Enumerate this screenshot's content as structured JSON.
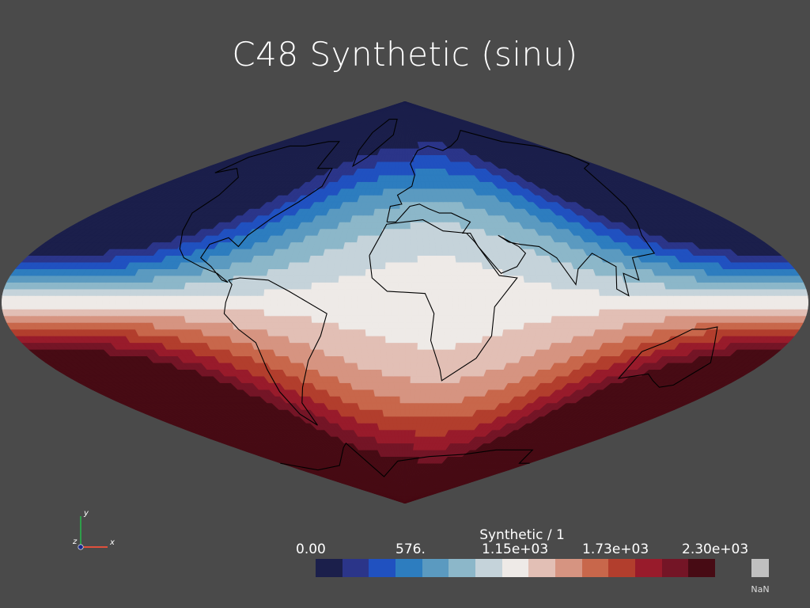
{
  "title": "C48 Synthetic (sinu)",
  "colorbar": {
    "title": "Synthetic / 1",
    "ticks": [
      "0.00",
      "576.",
      "1.15e+03",
      "1.73e+03",
      "2.30e+03"
    ],
    "colors": [
      "#1b1f4b",
      "#2b3589",
      "#2051c0",
      "#2d7dbf",
      "#5b9ac0",
      "#8cb7c9",
      "#c5d3da",
      "#eeeae7",
      "#e2bfb5",
      "#d69481",
      "#c8674b",
      "#b23e2d",
      "#981b2b",
      "#741526",
      "#470b14"
    ],
    "nan_label": "NaN",
    "nan_color": "#c0c0c0"
  },
  "axes": {
    "x_label": "x",
    "y_label": "y",
    "z_label": "z"
  },
  "map": {
    "projection": "sinusoidal",
    "field": "Synthetic",
    "range": [
      0,
      2300
    ],
    "outline_color": "#000000"
  }
}
